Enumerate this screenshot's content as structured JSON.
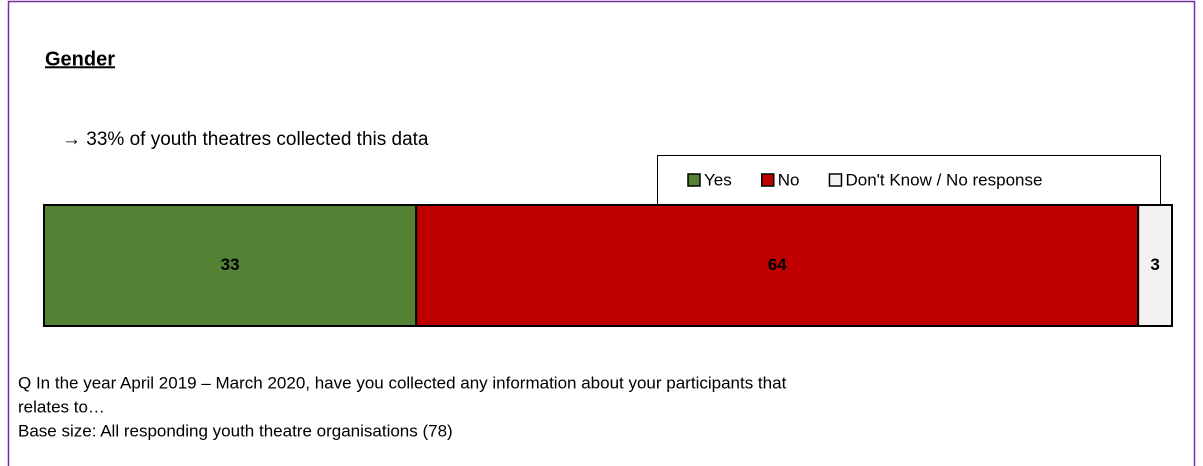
{
  "chart_data": {
    "type": "stacked_bar",
    "orientation": "horizontal",
    "title": "Gender",
    "annotation": "→ 33% of youth theatres collected this data",
    "series": [
      {
        "name": "Yes",
        "color": "#548235",
        "values": [
          33
        ]
      },
      {
        "name": "No",
        "color": "#c00000",
        "values": [
          64
        ]
      },
      {
        "name": "Don't Know / No response",
        "color": "#f2f2f2",
        "values": [
          3
        ]
      }
    ],
    "legend": "top-right",
    "notes": [
      "Q  In the year April 2019 – March 2020, have you collected any information about your participants that",
      "relates to…",
      "Base size: All responding youth theatre organisations (78)"
    ]
  }
}
